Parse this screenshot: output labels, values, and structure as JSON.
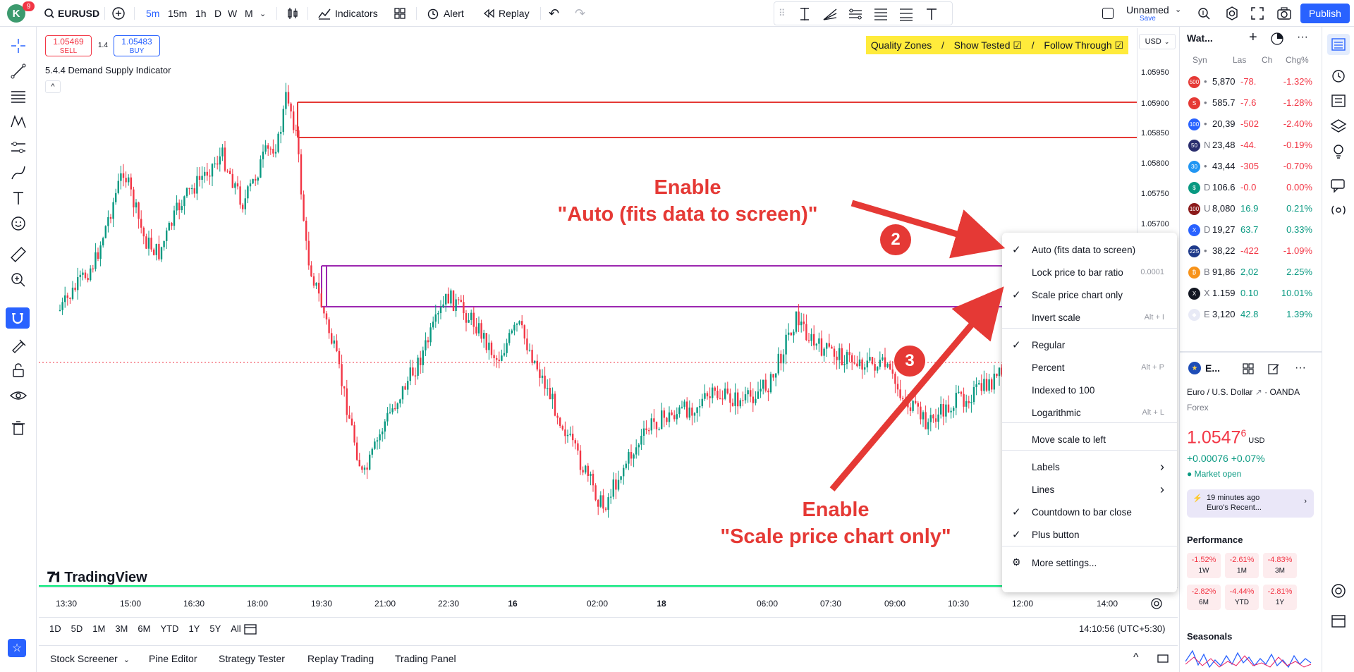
{
  "topbar": {
    "avatar_letter": "K",
    "avatar_badge": "9",
    "symbol": "EURUSD",
    "timeframes": [
      "5m",
      "15m",
      "1h",
      "D",
      "W",
      "M"
    ],
    "indicators_label": "Indicators",
    "alert_label": "Alert",
    "replay_label": "Replay",
    "layout_name": "Unnamed",
    "layout_save": "Save",
    "publish_label": "Publish"
  },
  "legend": {
    "sell_price": "1.05469",
    "sell_label": "SELL",
    "spread": "1.4",
    "buy_price": "1.05483",
    "buy_label": "BUY",
    "indicator_name": "5.4.4 Demand Supply Indicator"
  },
  "quality_bar": {
    "item1": "Quality Zones",
    "sep": "/",
    "item2": "Show Tested ☑",
    "item3": "Follow Through ☑"
  },
  "currency": "USD",
  "price_labels": [
    "1.05950",
    "1.05900",
    "1.05850",
    "1.05800",
    "1.05750",
    "1.05700"
  ],
  "time_labels": [
    "13:30",
    "15:00",
    "16:30",
    "18:00",
    "19:30",
    "21:00",
    "22:30",
    "16",
    "02:00",
    "18",
    "06:00",
    "07:30",
    "09:00",
    "10:30",
    "12:00",
    "14:00"
  ],
  "watermark": "TradingView",
  "range_buttons": [
    "1D",
    "5D",
    "1M",
    "3M",
    "6M",
    "YTD",
    "1Y",
    "5Y",
    "All"
  ],
  "clock": "14:10:56 (UTC+5:30)",
  "bottom_tabs": [
    "Stock Screener",
    "Pine Editor",
    "Strategy Tester",
    "Replay Trading",
    "Trading Panel"
  ],
  "watchlist": {
    "title": "Wat...",
    "headers": [
      "Syn",
      "Las",
      "Ch",
      "Chg%"
    ],
    "rows": [
      {
        "badge": "500",
        "color": "#e53935",
        "sym": "•",
        "last": "5,870",
        "chg": "-78.",
        "pct": "-1.32%",
        "up": false
      },
      {
        "badge": "S",
        "color": "#e53935",
        "sym": "•",
        "last": "585.7",
        "chg": "-7.6",
        "pct": "-1.28%",
        "up": false
      },
      {
        "badge": "100",
        "color": "#2962ff",
        "sym": "•",
        "last": "20,39",
        "chg": "-502",
        "pct": "-2.40%",
        "up": false
      },
      {
        "badge": "50",
        "color": "#2a2e6e",
        "sym": "N",
        "last": "23,48",
        "chg": "-44.",
        "pct": "-0.19%",
        "up": false
      },
      {
        "badge": "30",
        "color": "#2196f3",
        "sym": "•",
        "last": "43,44",
        "chg": "-305",
        "pct": "-0.70%",
        "up": false
      },
      {
        "badge": "$",
        "color": "#089981",
        "sym": "D",
        "last": "106.6",
        "chg": "-0.0",
        "pct": "0.00%",
        "up": false
      },
      {
        "badge": "100",
        "color": "#8b1a1a",
        "sym": "U",
        "last": "8,080",
        "chg": "16.9",
        "pct": "0.21%",
        "up": true
      },
      {
        "badge": "X",
        "color": "#2962ff",
        "sym": "D",
        "last": "19,27",
        "chg": "63.7",
        "pct": "0.33%",
        "up": true
      },
      {
        "badge": "225",
        "color": "#1e3a8a",
        "sym": "•",
        "last": "38,22",
        "chg": "-422",
        "pct": "-1.09%",
        "up": false
      },
      {
        "badge": "₿",
        "color": "#f7931a",
        "sym": "B",
        "last": "91,86",
        "chg": "2,02",
        "pct": "2.25%",
        "up": true
      },
      {
        "badge": "X",
        "color": "#131722",
        "sym": "X",
        "last": "1.159",
        "chg": "0.10",
        "pct": "10.01%",
        "up": true
      },
      {
        "badge": "◆",
        "color": "#e8eaf6",
        "sym": "E",
        "last": "3,120",
        "chg": "42.8",
        "pct": "1.39%",
        "up": true
      }
    ]
  },
  "details": {
    "short": "E...",
    "name": "Euro / U.S. Dollar",
    "exchange": "OANDA",
    "type": "Forex",
    "price_main": "1.0547",
    "price_sup": "6",
    "price_ccy": "USD",
    "change": "+0.00076",
    "change_pct": "+0.07%",
    "market_status": "Market open",
    "news_time": "19 minutes ago",
    "news_title": "Euro's Recent...",
    "performance_title": "Performance",
    "performance": [
      {
        "value": "-1.52%",
        "label": "1W"
      },
      {
        "value": "-2.61%",
        "label": "1M"
      },
      {
        "value": "-4.83%",
        "label": "3M"
      },
      {
        "value": "-2.82%",
        "label": "6M"
      },
      {
        "value": "-4.44%",
        "label": "YTD"
      },
      {
        "value": "-2.81%",
        "label": "1Y"
      }
    ],
    "seasonals_title": "Seasonals"
  },
  "context_menu": {
    "items": [
      {
        "label": "Auto (fits data to screen)",
        "checked": true,
        "shortcut": ""
      },
      {
        "label": "Lock price to bar ratio",
        "checked": false,
        "shortcut": "0.0001"
      },
      {
        "label": "Scale price chart only",
        "checked": true,
        "shortcut": ""
      },
      {
        "label": "Invert scale",
        "checked": false,
        "shortcut": "Alt + I"
      },
      {
        "label": "Regular",
        "checked": true,
        "shortcut": ""
      },
      {
        "label": "Percent",
        "checked": false,
        "shortcut": "Alt + P"
      },
      {
        "label": "Indexed to 100",
        "checked": false,
        "shortcut": ""
      },
      {
        "label": "Logarithmic",
        "checked": false,
        "shortcut": "Alt + L"
      },
      {
        "label": "Move scale to left",
        "checked": false,
        "shortcut": ""
      },
      {
        "label": "Labels",
        "checked": false,
        "shortcut": "›"
      },
      {
        "label": "Lines",
        "checked": false,
        "shortcut": "›"
      },
      {
        "label": "Countdown to bar close",
        "checked": true,
        "shortcut": ""
      },
      {
        "label": "Plus button",
        "checked": true,
        "shortcut": ""
      },
      {
        "label": "More settings...",
        "checked": false,
        "shortcut": ""
      }
    ]
  },
  "annotations": {
    "step2_num": "2",
    "step2_line1": "Enable",
    "step2_line2": "\"Auto (fits data to screen)\"",
    "step3_num": "3",
    "step3_line1": "Enable",
    "step3_line2": "\"Scale price chart only\""
  },
  "colors": {
    "accent": "#2962ff",
    "up": "#089981",
    "down": "#f23645",
    "annotation": "#e53935",
    "zone_supply": "#e53935",
    "zone_demand": "#9c27b0",
    "quality_bg": "#ffeb3b"
  }
}
